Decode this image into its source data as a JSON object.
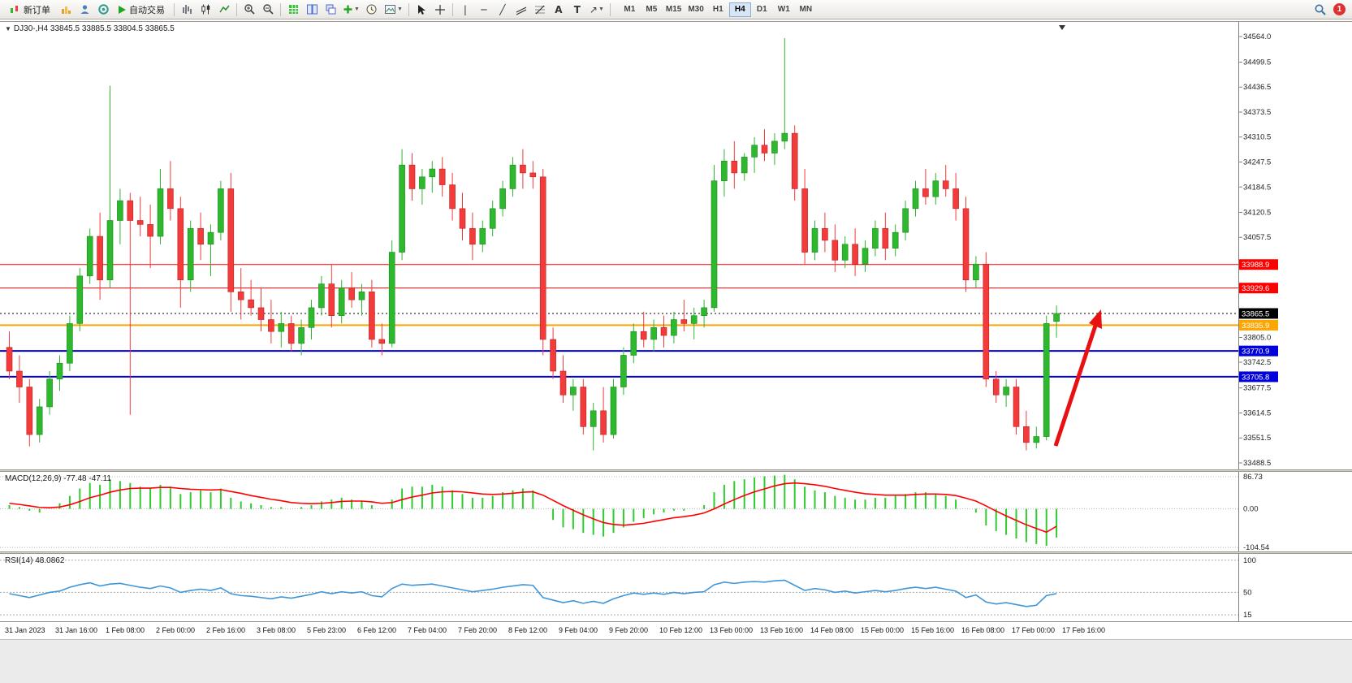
{
  "toolbar": {
    "new_order_label": "新订单",
    "autotrading_label": "自动交易",
    "timeframes": [
      "M1",
      "M5",
      "M15",
      "M30",
      "H1",
      "H4",
      "D1",
      "W1",
      "MN"
    ],
    "active_timeframe": "H4",
    "notification_count": "1"
  },
  "panels": {
    "main_header": "DJ30-,H4  33845.5 33885.5 33804.5 33865.5",
    "macd_header": "MACD(12,26,9) -77.48 -47.11",
    "rsi_header": "RSI(14) 48.0862"
  },
  "chart_data": [
    {
      "type": "candlestick",
      "symbol": "DJ30-",
      "timeframe": "H4",
      "ohlc_current": {
        "open": 33845.5,
        "high": 33885.5,
        "low": 33804.5,
        "close": 33865.5
      },
      "ylim": [
        33488.5,
        34564.0
      ],
      "up_color": "#2db82d",
      "down_color": "#f23b3b",
      "y_ticks": [
        {
          "label": "34564.0",
          "value": 34564.0
        },
        {
          "label": "34499.5",
          "value": 34499.5
        },
        {
          "label": "34436.5",
          "value": 34436.5
        },
        {
          "label": "34373.5",
          "value": 34373.5
        },
        {
          "label": "34310.5",
          "value": 34310.5
        },
        {
          "label": "34247.5",
          "value": 34247.5
        },
        {
          "label": "34184.5",
          "value": 34184.5
        },
        {
          "label": "34120.5",
          "value": 34120.5
        },
        {
          "label": "34057.5",
          "value": 34057.5
        },
        {
          "label": "33805.0",
          "value": 33805.0
        },
        {
          "label": "33742.5",
          "value": 33742.5
        },
        {
          "label": "33677.5",
          "value": 33677.5
        },
        {
          "label": "33614.5",
          "value": 33614.5
        },
        {
          "label": "33551.5",
          "value": 33551.5
        },
        {
          "label": "33488.5",
          "value": 33488.5
        }
      ],
      "levels": [
        {
          "label": "33988.9",
          "value": 33988.9,
          "color": "#ff0000",
          "width": 1,
          "style": "solid"
        },
        {
          "label": "33929.6",
          "value": 33929.6,
          "color": "#ff0000",
          "width": 1,
          "style": "solid"
        },
        {
          "label": "33865.5",
          "value": 33865.5,
          "color": "#000000",
          "width": 1,
          "style": "dotted"
        },
        {
          "label": "33835.9",
          "value": 33835.9,
          "color": "#ffa500",
          "width": 2,
          "style": "solid"
        },
        {
          "label": "33770.9",
          "value": 33770.9,
          "color": "#0000dd",
          "width": 2,
          "style": "solid"
        },
        {
          "label": "33705.8",
          "value": 33705.8,
          "color": "#0000dd",
          "width": 2,
          "style": "solid"
        }
      ],
      "annotations": [
        {
          "type": "arrow",
          "direction": "up",
          "color": "#e81010"
        }
      ],
      "x_labels": [
        "31 Jan 2023",
        "31 Jan 16:00",
        "1 Feb 08:00",
        "2 Feb 00:00",
        "2 Feb 16:00",
        "3 Feb 08:00",
        "5 Feb 23:00",
        "6 Feb 12:00",
        "7 Feb 04:00",
        "7 Feb 20:00",
        "8 Feb 12:00",
        "9 Feb 04:00",
        "9 Feb 20:00",
        "10 Feb 12:00",
        "13 Feb 00:00",
        "13 Feb 16:00",
        "14 Feb 08:00",
        "15 Feb 00:00",
        "15 Feb 16:00",
        "16 Feb 08:00",
        "17 Feb 00:00",
        "17 Feb 16:00"
      ],
      "candles": [
        [
          33780,
          33820,
          33700,
          33720
        ],
        [
          33720,
          33760,
          33640,
          33680
        ],
        [
          33680,
          33700,
          33530,
          33560
        ],
        [
          33560,
          33650,
          33540,
          33630
        ],
        [
          33630,
          33720,
          33610,
          33700
        ],
        [
          33700,
          33760,
          33670,
          33740
        ],
        [
          33740,
          33860,
          33720,
          33840
        ],
        [
          33840,
          33980,
          33820,
          33960
        ],
        [
          33960,
          34080,
          33940,
          34060
        ],
        [
          34060,
          34120,
          33900,
          33950
        ],
        [
          33950,
          34440,
          33930,
          34100
        ],
        [
          34100,
          34180,
          34040,
          34150
        ],
        [
          34150,
          34170,
          33610,
          34100
        ],
        [
          34100,
          34160,
          34060,
          34090
        ],
        [
          34090,
          34140,
          33980,
          34060
        ],
        [
          34060,
          34230,
          34040,
          34180
        ],
        [
          34180,
          34250,
          34100,
          34130
        ],
        [
          34130,
          34160,
          33880,
          33950
        ],
        [
          33950,
          34100,
          33920,
          34080
        ],
        [
          34080,
          34120,
          34000,
          34040
        ],
        [
          34040,
          34090,
          33960,
          34070
        ],
        [
          34070,
          34200,
          34050,
          34180
        ],
        [
          34180,
          34220,
          33870,
          33920
        ],
        [
          33920,
          33980,
          33850,
          33900
        ],
        [
          33900,
          33950,
          33860,
          33880
        ],
        [
          33880,
          33930,
          33820,
          33850
        ],
        [
          33850,
          33900,
          33790,
          33820
        ],
        [
          33820,
          33870,
          33780,
          33840
        ],
        [
          33840,
          33860,
          33770,
          33790
        ],
        [
          33790,
          33850,
          33760,
          33830
        ],
        [
          33830,
          33900,
          33800,
          33880
        ],
        [
          33880,
          33960,
          33860,
          33940
        ],
        [
          33940,
          33990,
          33830,
          33860
        ],
        [
          33860,
          33950,
          33840,
          33930
        ],
        [
          33930,
          33970,
          33880,
          33900
        ],
        [
          33900,
          33940,
          33860,
          33920
        ],
        [
          33920,
          33950,
          33780,
          33800
        ],
        [
          33800,
          33840,
          33760,
          33790
        ],
        [
          33790,
          34050,
          33780,
          34020
        ],
        [
          34020,
          34280,
          34000,
          34240
        ],
        [
          34240,
          34270,
          34150,
          34180
        ],
        [
          34180,
          34230,
          34140,
          34210
        ],
        [
          34210,
          34250,
          34170,
          34230
        ],
        [
          34230,
          34260,
          34160,
          34190
        ],
        [
          34190,
          34220,
          34100,
          34130
        ],
        [
          34130,
          34170,
          34050,
          34080
        ],
        [
          34080,
          34120,
          34000,
          34040
        ],
        [
          34040,
          34100,
          34020,
          34080
        ],
        [
          34080,
          34150,
          34060,
          34130
        ],
        [
          34130,
          34200,
          34110,
          34180
        ],
        [
          34180,
          34260,
          34160,
          34240
        ],
        [
          34240,
          34280,
          34180,
          34220
        ],
        [
          34220,
          34250,
          34180,
          34210
        ],
        [
          34210,
          34230,
          33760,
          33800
        ],
        [
          33800,
          33830,
          33700,
          33720
        ],
        [
          33720,
          33760,
          33640,
          33660
        ],
        [
          33660,
          33700,
          33620,
          33680
        ],
        [
          33680,
          33700,
          33560,
          33580
        ],
        [
          33580,
          33640,
          33520,
          33620
        ],
        [
          33620,
          33680,
          33540,
          33560
        ],
        [
          33560,
          33700,
          33550,
          33680
        ],
        [
          33680,
          33780,
          33660,
          33760
        ],
        [
          33760,
          33840,
          33740,
          33820
        ],
        [
          33820,
          33870,
          33780,
          33800
        ],
        [
          33800,
          33850,
          33770,
          33830
        ],
        [
          33830,
          33860,
          33780,
          33810
        ],
        [
          33810,
          33870,
          33790,
          33850
        ],
        [
          33850,
          33900,
          33820,
          33840
        ],
        [
          33840,
          33880,
          33800,
          33860
        ],
        [
          33860,
          33900,
          33830,
          33880
        ],
        [
          33880,
          34240,
          33870,
          34200
        ],
        [
          34200,
          34280,
          34160,
          34250
        ],
        [
          34250,
          34300,
          34180,
          34220
        ],
        [
          34220,
          34270,
          34200,
          34260
        ],
        [
          34260,
          34310,
          34220,
          34290
        ],
        [
          34290,
          34330,
          34250,
          34270
        ],
        [
          34270,
          34320,
          34240,
          34300
        ],
        [
          34300,
          34560,
          34280,
          34320
        ],
        [
          34320,
          34340,
          34150,
          34180
        ],
        [
          34180,
          34230,
          33990,
          34020
        ],
        [
          34020,
          34100,
          34000,
          34080
        ],
        [
          34080,
          34120,
          34020,
          34050
        ],
        [
          34050,
          34090,
          33970,
          34000
        ],
        [
          34000,
          34060,
          33980,
          34040
        ],
        [
          34040,
          34080,
          33960,
          33990
        ],
        [
          33990,
          34050,
          33970,
          34030
        ],
        [
          34030,
          34100,
          34010,
          34080
        ],
        [
          34080,
          34120,
          34000,
          34030
        ],
        [
          34030,
          34090,
          34010,
          34070
        ],
        [
          34070,
          34150,
          34050,
          34130
        ],
        [
          34130,
          34200,
          34110,
          34180
        ],
        [
          34180,
          34230,
          34140,
          34160
        ],
        [
          34160,
          34220,
          34140,
          34200
        ],
        [
          34200,
          34240,
          34160,
          34180
        ],
        [
          34180,
          34220,
          34100,
          34130
        ],
        [
          34130,
          34160,
          33920,
          33950
        ],
        [
          33950,
          34010,
          33930,
          33990
        ],
        [
          33990,
          34020,
          33680,
          33700
        ],
        [
          33700,
          33720,
          33640,
          33660
        ],
        [
          33660,
          33700,
          33630,
          33680
        ],
        [
          33680,
          33700,
          33560,
          33580
        ],
        [
          33580,
          33620,
          33520,
          33540
        ],
        [
          33540,
          33580,
          33525,
          33555
        ],
        [
          33555,
          33860,
          33545,
          33840
        ],
        [
          33845.5,
          33885.5,
          33804.5,
          33865.5
        ]
      ]
    },
    {
      "type": "bar",
      "name": "MACD(12,26,9)",
      "current": {
        "macd": -77.48,
        "signal": -47.11
      },
      "bar_color": "#2ecc2e",
      "signal_color": "#ff0000",
      "ylim": [
        -104.54,
        86.73
      ],
      "y_ticks": [
        {
          "label": "86.73",
          "value": 86.73
        },
        {
          "label": "0.00",
          "value": 0
        },
        {
          "label": "-104.54",
          "value": -104.54
        }
      ],
      "values": [
        10,
        5,
        -5,
        -10,
        0,
        15,
        35,
        55,
        70,
        65,
        80,
        75,
        70,
        60,
        55,
        65,
        60,
        40,
        45,
        50,
        45,
        55,
        30,
        20,
        15,
        10,
        5,
        5,
        0,
        5,
        10,
        20,
        25,
        30,
        25,
        20,
        10,
        0,
        25,
        55,
        60,
        60,
        65,
        60,
        50,
        40,
        30,
        30,
        35,
        45,
        50,
        55,
        50,
        0,
        -30,
        -50,
        -55,
        -65,
        -70,
        -75,
        -65,
        -50,
        -35,
        -25,
        -15,
        -10,
        -5,
        -5,
        0,
        10,
        45,
        65,
        75,
        80,
        85,
        88,
        90,
        92,
        80,
        60,
        50,
        45,
        35,
        30,
        25,
        25,
        30,
        30,
        35,
        40,
        45,
        45,
        40,
        35,
        25,
        0,
        -10,
        -45,
        -60,
        -70,
        -80,
        -90,
        -95,
        -100,
        -77.48
      ],
      "signal": [
        15,
        12,
        8,
        4,
        3,
        5,
        11,
        20,
        30,
        37,
        45,
        51,
        55,
        56,
        56,
        58,
        58,
        55,
        53,
        52,
        51,
        52,
        47,
        42,
        36,
        31,
        26,
        22,
        17,
        15,
        14,
        15,
        17,
        20,
        21,
        21,
        19,
        15,
        17,
        25,
        32,
        37,
        43,
        46,
        47,
        46,
        43,
        40,
        39,
        40,
        42,
        45,
        46,
        37,
        23,
        9,
        -4,
        -16,
        -27,
        -37,
        -42,
        -44,
        -42,
        -39,
        -34,
        -29,
        -24,
        -21,
        -17,
        -11,
        0,
        13,
        25,
        36,
        46,
        54,
        62,
        68,
        70,
        68,
        65,
        61,
        55,
        50,
        45,
        41,
        39,
        37,
        37,
        37,
        39,
        40,
        40,
        39,
        36,
        29,
        21,
        8,
        -6,
        -19,
        -31,
        -43,
        -53,
        -63,
        -47.11
      ]
    },
    {
      "type": "line",
      "name": "RSI(14)",
      "current": 48.0862,
      "line_color": "#3f96d8",
      "ylim": [
        0,
        100
      ],
      "levels": [
        100,
        50,
        15
      ],
      "y_ticks": [
        {
          "label": "100",
          "value": 100
        },
        {
          "label": "50",
          "value": 50
        },
        {
          "label": "15",
          "value": 15
        }
      ],
      "values": [
        48,
        45,
        42,
        46,
        50,
        52,
        58,
        62,
        65,
        60,
        63,
        64,
        61,
        58,
        56,
        60,
        57,
        50,
        53,
        55,
        53,
        57,
        48,
        45,
        44,
        42,
        40,
        43,
        41,
        44,
        47,
        51,
        48,
        51,
        49,
        51,
        45,
        43,
        56,
        63,
        61,
        62,
        63,
        60,
        57,
        54,
        51,
        53,
        55,
        58,
        60,
        62,
        61,
        42,
        38,
        34,
        37,
        33,
        36,
        33,
        40,
        45,
        49,
        47,
        49,
        47,
        50,
        48,
        50,
        51,
        62,
        66,
        64,
        66,
        67,
        66,
        68,
        69,
        61,
        53,
        56,
        54,
        50,
        52,
        49,
        51,
        53,
        51,
        53,
        56,
        58,
        56,
        58,
        55,
        52,
        42,
        46,
        35,
        32,
        34,
        31,
        28,
        30,
        45,
        48.09
      ]
    }
  ]
}
